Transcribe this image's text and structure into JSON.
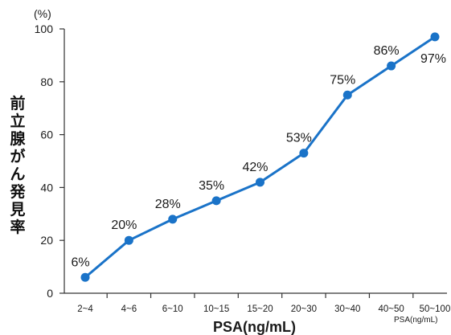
{
  "chart_data": {
    "type": "line",
    "title": "",
    "xlabel": "PSA(ng/mL)",
    "xlabel_small": "PSA(ng/mL)",
    "ylabel": "前立腺がん発見率",
    "y_unit": "(%)",
    "categories": [
      "2~4",
      "4~6",
      "6~10",
      "10~15",
      "15~20",
      "20~30",
      "30~40",
      "40~50",
      "50~100"
    ],
    "ylim": [
      0,
      100
    ],
    "yticks": [
      "0",
      "20",
      "40",
      "60",
      "80",
      "100"
    ],
    "grid": false,
    "legend": "none",
    "series": [
      {
        "values": [
          6,
          20,
          28,
          35,
          42,
          53,
          75,
          86,
          97
        ],
        "point_labels": [
          "6%",
          "20%",
          "28%",
          "35%",
          "42%",
          "53%",
          "75%",
          "86%",
          "97%"
        ],
        "color": "#1a73c8"
      }
    ]
  }
}
